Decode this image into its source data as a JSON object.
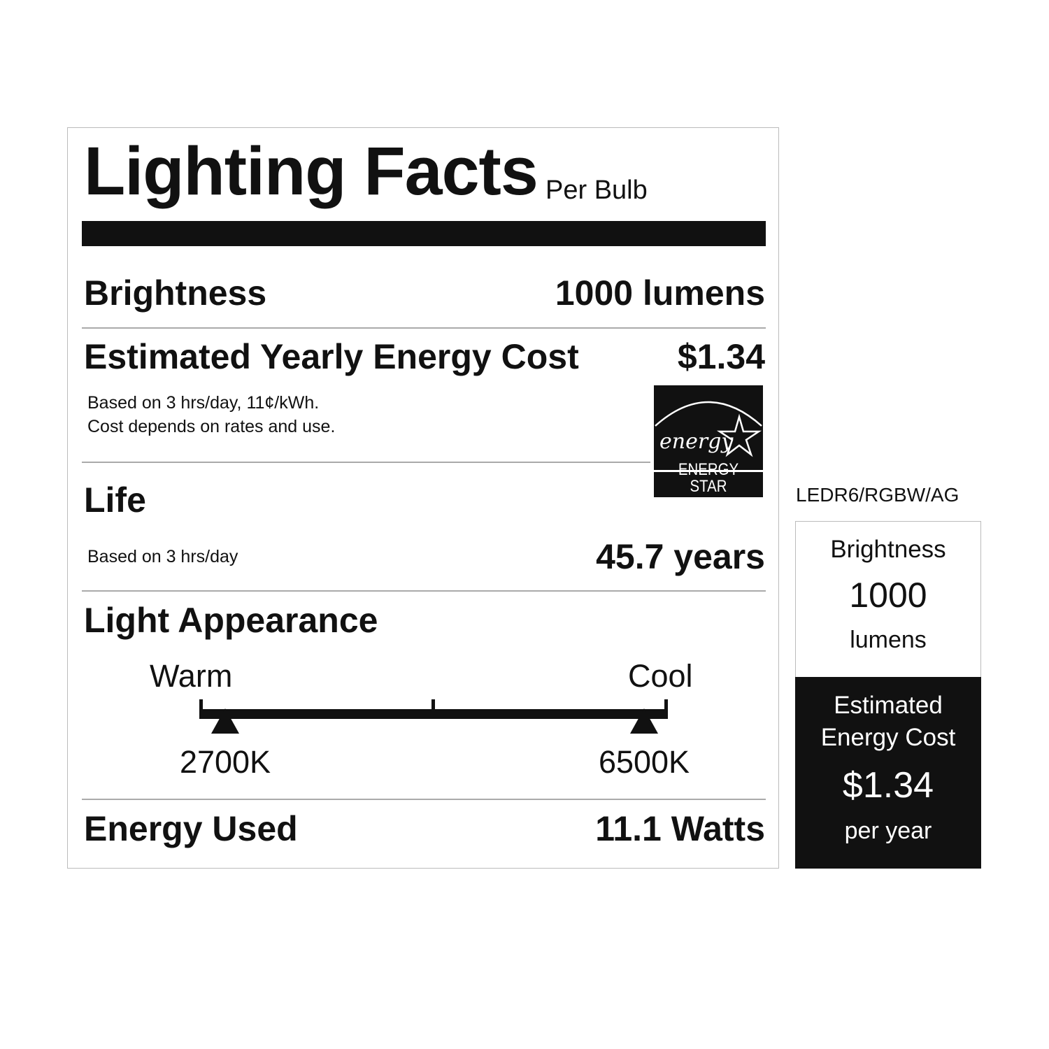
{
  "label": {
    "title": "Lighting Facts",
    "subtitle": "Per Bulb",
    "brightness": {
      "label": "Brightness",
      "value": "1000 lumens"
    },
    "energy_cost": {
      "label": "Estimated Yearly Energy Cost",
      "value": "$1.34",
      "note_line1": "Based on 3 hrs/day, 11¢/kWh.",
      "note_line2": "Cost depends on rates and use."
    },
    "energy_star": {
      "script_text": "energy",
      "label": "ENERGY STAR"
    },
    "life": {
      "label": "Life",
      "note": "Based on 3 hrs/day",
      "value": "45.7 years"
    },
    "light_appearance": {
      "label": "Light Appearance",
      "warm_label": "Warm",
      "cool_label": "Cool",
      "markers": [
        {
          "kelvin": 2700,
          "label": "2700K"
        },
        {
          "kelvin": 6500,
          "label": "6500K"
        }
      ]
    },
    "energy_used": {
      "label": "Energy Used",
      "value": "11.1 Watts"
    }
  },
  "side_panel": {
    "model": "LEDR6/RGBW/AG",
    "brightness_label": "Brightness",
    "brightness_value": "1000",
    "brightness_unit": "lumens",
    "cost_label_line1": "Estimated",
    "cost_label_line2": "Energy Cost",
    "cost_value": "$1.34",
    "cost_period": "per year"
  }
}
